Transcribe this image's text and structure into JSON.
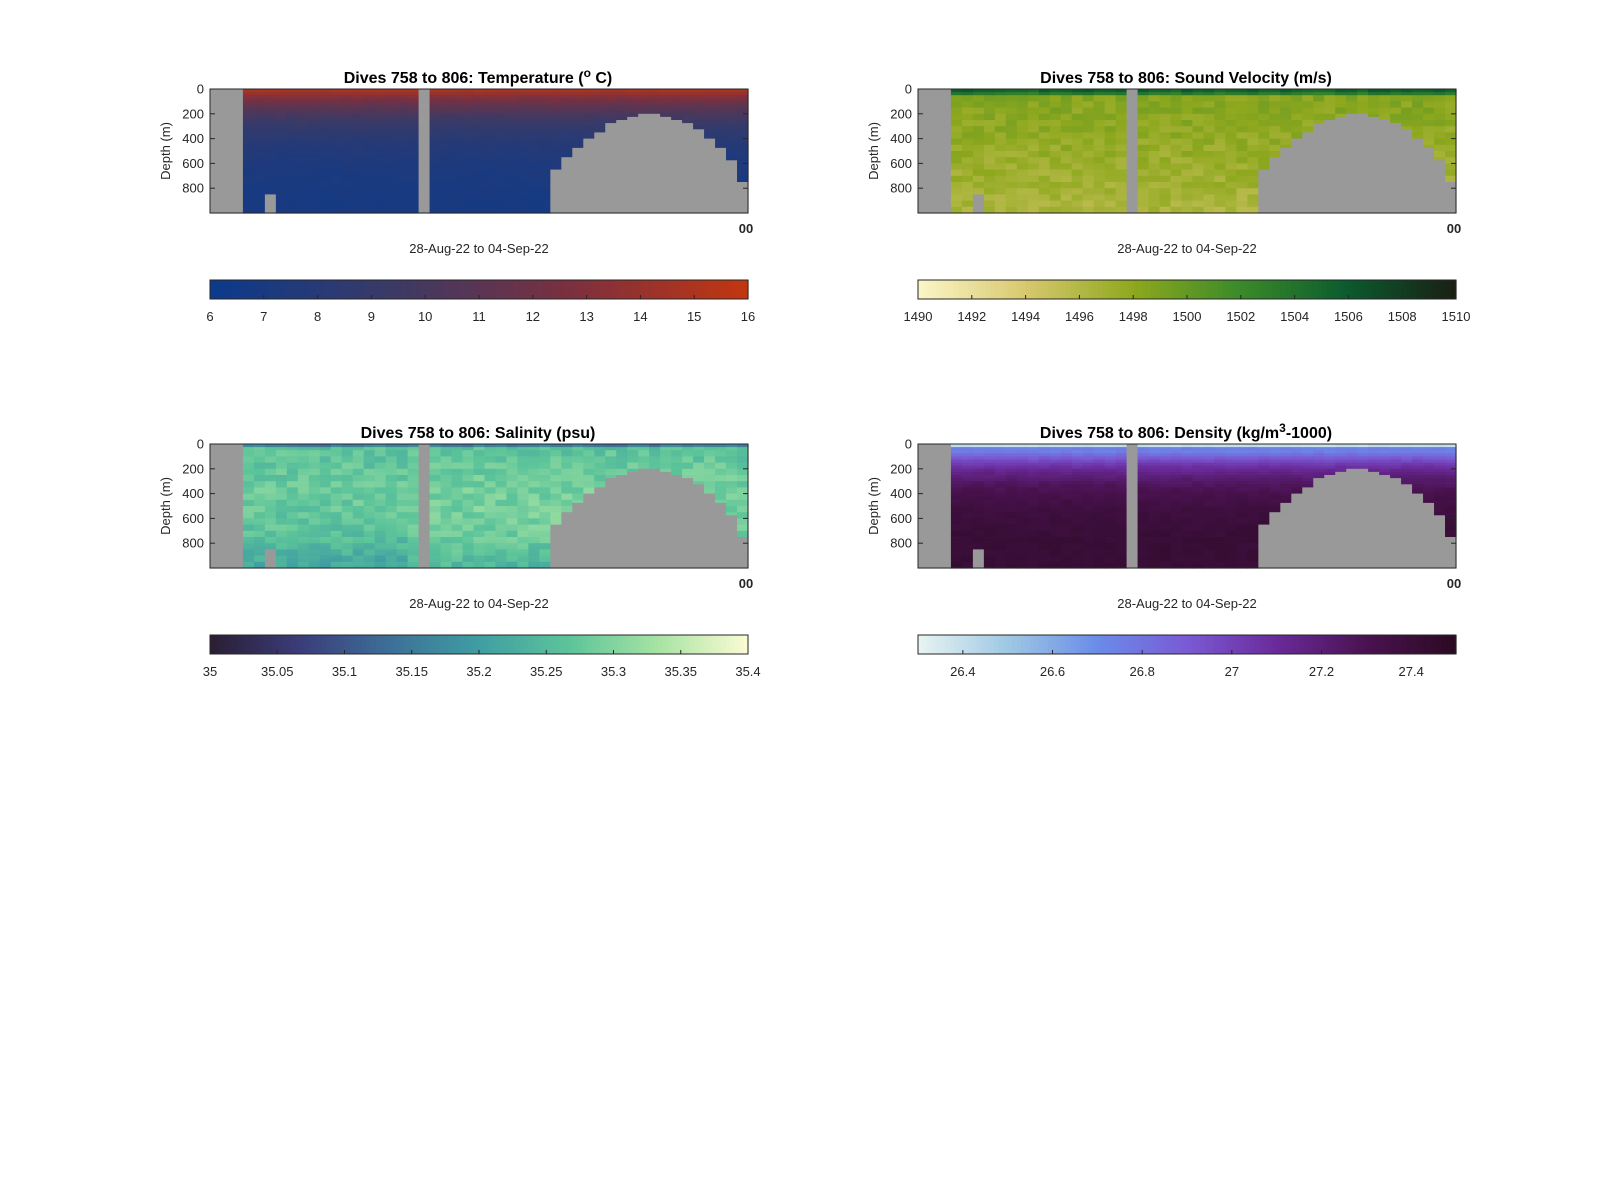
{
  "figure": {
    "background": "#ffffff",
    "land_mask_color": "#999999"
  },
  "chart_data": [
    {
      "type": "heatmap",
      "title_main": "Dives 758 to 806: Temperature (",
      "title_sup": "o",
      "title_end": " C)",
      "ylabel": "Depth (m)",
      "xlabel": "28-Aug-22 to 04-Sep-22",
      "x_tick_label": "00",
      "y_ticks": [
        0,
        200,
        400,
        600,
        800
      ],
      "ylim": [
        0,
        1000
      ],
      "dives": [
        758,
        806
      ],
      "colorbar": {
        "ticks": [
          6,
          7,
          8,
          9,
          10,
          11,
          12,
          13,
          14,
          15,
          16
        ],
        "tick_labels": [
          "6",
          "7",
          "8",
          "9",
          "10",
          "11",
          "12",
          "13",
          "14",
          "15",
          "16"
        ],
        "clim": [
          6,
          16
        ],
        "colors": [
          "#0b3a8c",
          "#3a3a66",
          "#7a3040",
          "#c23610"
        ]
      },
      "surface_value": 15.2,
      "deep_value": 6.8,
      "profile": "exp",
      "noise": 0.15
    },
    {
      "type": "heatmap",
      "title_main": "Dives 758 to 806: Sound Velocity (m/s)",
      "title_sup": "",
      "title_end": "",
      "ylabel": "Depth (m)",
      "xlabel": "28-Aug-22 to 04-Sep-22",
      "x_tick_label": "00",
      "y_ticks": [
        0,
        200,
        400,
        600,
        800
      ],
      "ylim": [
        0,
        1000
      ],
      "dives": [
        758,
        806
      ],
      "colorbar": {
        "ticks": [
          1490,
          1492,
          1494,
          1496,
          1498,
          1500,
          1502,
          1504,
          1506,
          1508,
          1510
        ],
        "tick_labels": [
          "1490",
          "1492",
          "1494",
          "1496",
          "1498",
          "1500",
          "1502",
          "1504",
          "1506",
          "1508",
          "1510"
        ],
        "clim": [
          1490,
          1510
        ],
        "colors": [
          "#fbf6c8",
          "#d8c86e",
          "#8ea81e",
          "#3a8a2a",
          "#0b5a2e",
          "#1a1f14"
        ]
      },
      "surface_value": 1506.5,
      "deep_value": 1496.5,
      "profile": "soundvel",
      "noise": 0.9
    },
    {
      "type": "heatmap",
      "title_main": "Dives 758 to 806: Salinity (psu)",
      "title_sup": "",
      "title_end": "",
      "ylabel": "Depth (m)",
      "xlabel": "28-Aug-22 to 04-Sep-22",
      "x_tick_label": "00",
      "y_ticks": [
        0,
        200,
        400,
        600,
        800
      ],
      "ylim": [
        0,
        1000
      ],
      "dives": [
        758,
        806
      ],
      "colorbar": {
        "ticks": [
          35,
          35.05,
          35.1,
          35.15,
          35.2,
          35.25,
          35.3,
          35.35,
          35.4
        ],
        "tick_labels": [
          "35",
          "35.05",
          "35.1",
          "35.15",
          "35.2",
          "35.25",
          "35.3",
          "35.35",
          "35.4"
        ],
        "clim": [
          35,
          35.4
        ],
        "colors": [
          "#2a1e33",
          "#3b3c7a",
          "#3d6f98",
          "#3f9ea2",
          "#5cc49a",
          "#a7e3a3",
          "#fcfbd4"
        ]
      },
      "surface_value": 35.27,
      "deep_value": 35.2,
      "profile": "salinity",
      "noise": 0.025
    },
    {
      "type": "heatmap",
      "title_main": "Dives 758 to 806: Density (kg/m",
      "title_sup": "3",
      "title_end": "-1000)",
      "ylabel": "Depth (m)",
      "xlabel": "28-Aug-22 to 04-Sep-22",
      "x_tick_label": "00",
      "y_ticks": [
        0,
        200,
        400,
        600,
        800
      ],
      "ylim": [
        0,
        1000
      ],
      "dives": [
        758,
        806
      ],
      "colorbar": {
        "ticks": [
          26.4,
          26.6,
          26.8,
          27,
          27.2,
          27.4
        ],
        "tick_labels": [
          "26.4",
          "26.6",
          "26.8",
          "27",
          "27.2",
          "27.4"
        ],
        "clim": [
          26.3,
          27.5
        ],
        "colors": [
          "#e8f4f2",
          "#9fc8e4",
          "#6a8ce8",
          "#7a5ad4",
          "#6a2a9a",
          "#4a1250",
          "#2a0a22"
        ]
      },
      "surface_value": 26.45,
      "deep_value": 27.42,
      "profile": "density",
      "noise": 0.02
    }
  ]
}
